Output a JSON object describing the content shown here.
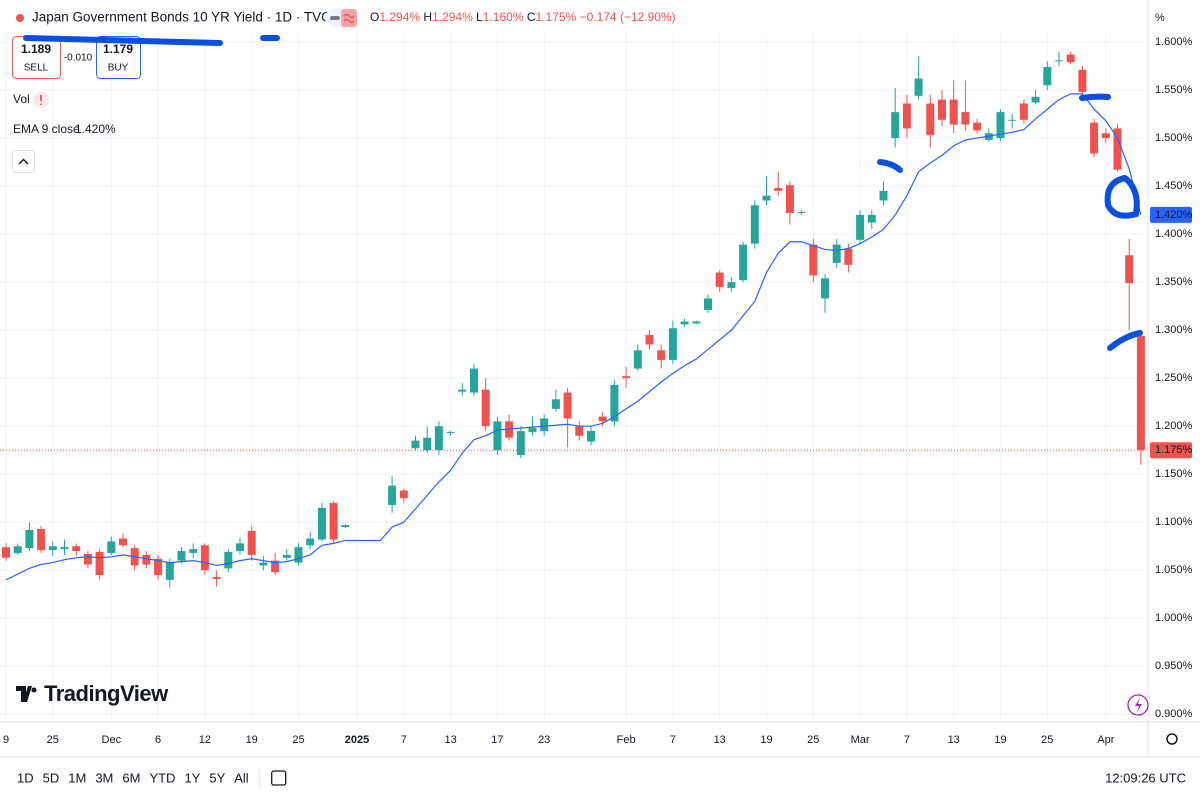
{
  "header": {
    "title": "Japan Government Bonds 10 YR Yield · 1D · TVC",
    "ohlc": [
      {
        "key": "O",
        "value": "1.294%"
      },
      {
        "key": "H",
        "value": "1.294%"
      },
      {
        "key": "L",
        "value": "1.160%"
      },
      {
        "key": "C",
        "value": "1.175%"
      }
    ],
    "change": "−0.174 (−12.90%)",
    "sell": {
      "price": "1.189",
      "label": "SELL"
    },
    "spread": "-0.010",
    "buy": {
      "price": "1.179",
      "label": "BUY"
    },
    "vol": "Vol",
    "axis_unit": "%"
  },
  "chart_data": {
    "type": "candlestick",
    "up_color": "#26a69a",
    "down_color": "#ef5350",
    "grid": true,
    "categories": [
      "9",
      null,
      null,
      null,
      "25",
      null,
      null,
      null,
      null,
      "Dec",
      null,
      null,
      null,
      "6",
      null,
      null,
      null,
      "12",
      null,
      null,
      null,
      "19",
      null,
      null,
      null,
      "25",
      null,
      null,
      null,
      null,
      "2025",
      null,
      null,
      null,
      "7",
      null,
      null,
      null,
      "13",
      null,
      null,
      null,
      "17",
      null,
      null,
      null,
      "23",
      null,
      null,
      null,
      null,
      null,
      null,
      "Feb",
      null,
      null,
      null,
      "7",
      null,
      null,
      null,
      "13",
      null,
      null,
      null,
      "19",
      null,
      null,
      null,
      "25",
      null,
      null,
      null,
      "Mar",
      null,
      null,
      null,
      "7",
      null,
      null,
      null,
      "13",
      null,
      null,
      null,
      "19",
      null,
      null,
      null,
      "25",
      null,
      null,
      null,
      null,
      "Apr",
      null,
      null,
      null
    ],
    "open": [
      1.074,
      1.068,
      1.073,
      1.093,
      1.071,
      1.072,
      1.075,
      1.067,
      1.069,
      1.068,
      1.083,
      1.073,
      1.066,
      1.062,
      1.04,
      1.06,
      1.068,
      1.076,
      1.043,
      1.052,
      1.07,
      1.091,
      1.055,
      1.06,
      1.063,
      1.058,
      1.076,
      1.082,
      1.12,
      1.095,
      null,
      null,
      null,
      1.118,
      1.133,
      1.177,
      1.175,
      1.175,
      1.193,
      1.236,
      1.235,
      1.238,
      1.175,
      1.205,
      1.17,
      1.194,
      1.195,
      1.218,
      1.235,
      1.2,
      1.184,
      1.21,
      1.205,
      1.252,
      1.26,
      1.295,
      1.279,
      1.269,
      1.306,
      1.307,
      1.321,
      1.36,
      1.344,
      1.352,
      1.39,
      1.435,
      1.448,
      1.451,
      1.422,
      1.389,
      1.333,
      1.37,
      1.385,
      1.394,
      1.412,
      1.435,
      1.5,
      1.536,
      1.544,
      1.536,
      1.54,
      1.54,
      1.527,
      1.516,
      1.498,
      1.5,
      1.518,
      1.536,
      1.537,
      1.555,
      1.58,
      1.587,
      1.571,
      1.516,
      1.505,
      1.51,
      1.378,
      1.294
    ],
    "high": [
      1.078,
      1.078,
      1.1,
      1.096,
      1.08,
      1.082,
      1.078,
      1.07,
      1.072,
      1.085,
      1.088,
      1.076,
      1.07,
      1.066,
      1.062,
      1.074,
      1.078,
      1.078,
      1.05,
      1.072,
      1.084,
      1.096,
      1.065,
      1.068,
      1.072,
      1.078,
      1.09,
      1.12,
      1.122,
      1.098,
      null,
      null,
      null,
      1.148,
      1.135,
      1.19,
      1.2,
      1.205,
      1.195,
      1.245,
      1.265,
      1.25,
      1.21,
      1.212,
      1.2,
      1.21,
      1.212,
      1.238,
      1.24,
      1.205,
      1.2,
      1.215,
      1.248,
      1.262,
      1.285,
      1.3,
      1.285,
      1.31,
      1.312,
      1.31,
      1.337,
      1.362,
      1.355,
      1.392,
      1.435,
      1.46,
      1.465,
      1.455,
      1.425,
      1.395,
      1.358,
      1.395,
      1.39,
      1.425,
      1.425,
      1.455,
      1.552,
      1.545,
      1.585,
      1.545,
      1.55,
      1.56,
      1.56,
      1.52,
      1.51,
      1.53,
      1.525,
      1.54,
      1.55,
      1.58,
      1.59,
      1.59,
      1.575,
      1.52,
      1.51,
      1.515,
      1.395,
      1.294
    ],
    "low": [
      1.06,
      1.066,
      1.07,
      1.068,
      1.065,
      1.066,
      1.065,
      1.052,
      1.04,
      1.066,
      1.074,
      1.05,
      1.052,
      1.04,
      1.032,
      1.057,
      1.063,
      1.045,
      1.033,
      1.048,
      1.066,
      1.06,
      1.05,
      1.045,
      1.06,
      1.055,
      1.072,
      1.08,
      1.078,
      1.094,
      null,
      null,
      null,
      1.11,
      1.12,
      1.175,
      1.172,
      1.17,
      1.19,
      1.232,
      1.232,
      1.195,
      1.17,
      1.185,
      1.167,
      1.19,
      1.19,
      1.215,
      1.178,
      1.185,
      1.18,
      1.2,
      1.2,
      1.24,
      1.258,
      1.28,
      1.26,
      1.265,
      1.303,
      1.306,
      1.318,
      1.34,
      1.34,
      1.35,
      1.385,
      1.43,
      1.44,
      1.41,
      1.42,
      1.35,
      1.318,
      1.365,
      1.36,
      1.39,
      1.405,
      1.43,
      1.49,
      1.5,
      1.54,
      1.49,
      1.512,
      1.505,
      1.508,
      1.505,
      1.496,
      1.497,
      1.51,
      1.515,
      1.535,
      1.55,
      1.575,
      1.577,
      1.54,
      1.48,
      1.495,
      1.465,
      1.3,
      1.16
    ],
    "close": [
      1.063,
      1.075,
      1.092,
      1.071,
      1.075,
      1.074,
      1.07,
      1.056,
      1.045,
      1.08,
      1.076,
      1.055,
      1.056,
      1.045,
      1.058,
      1.07,
      1.072,
      1.05,
      1.041,
      1.069,
      1.078,
      1.066,
      1.058,
      1.048,
      1.066,
      1.074,
      1.083,
      1.115,
      1.082,
      1.097,
      null,
      null,
      null,
      1.138,
      1.125,
      1.185,
      1.188,
      1.2,
      1.194,
      1.238,
      1.26,
      1.2,
      1.205,
      1.188,
      1.195,
      1.198,
      1.208,
      1.228,
      1.208,
      1.19,
      1.195,
      1.205,
      1.243,
      1.25,
      1.279,
      1.285,
      1.269,
      1.302,
      1.309,
      1.309,
      1.333,
      1.345,
      1.35,
      1.389,
      1.43,
      1.44,
      1.445,
      1.422,
      1.423,
      1.357,
      1.354,
      1.389,
      1.368,
      1.42,
      1.42,
      1.445,
      1.527,
      1.51,
      1.562,
      1.503,
      1.519,
      1.514,
      1.514,
      1.508,
      1.505,
      1.527,
      1.519,
      1.519,
      1.543,
      1.574,
      1.581,
      1.579,
      1.548,
      1.484,
      1.5,
      1.467,
      1.349,
      1.175
    ],
    "last_price_label": "1.175%",
    "ema": {
      "name": "EMA 9 close",
      "color": "#2962ff",
      "value_label": "1.420%",
      "values": [
        1.04,
        1.046,
        1.052,
        1.056,
        1.058,
        1.061,
        1.063,
        1.064,
        1.063,
        1.064,
        1.066,
        1.064,
        1.062,
        1.06,
        1.058,
        1.059,
        1.06,
        1.058,
        1.055,
        1.057,
        1.06,
        1.062,
        1.06,
        1.058,
        1.059,
        1.062,
        1.066,
        1.076,
        1.078,
        1.081,
        1.081,
        1.081,
        1.081,
        1.095,
        1.1,
        1.114,
        1.128,
        1.142,
        1.154,
        1.172,
        1.186,
        1.19,
        1.196,
        1.197,
        1.198,
        1.199,
        1.2,
        1.201,
        1.202,
        1.2,
        1.2,
        1.203,
        1.21,
        1.218,
        1.226,
        1.236,
        1.246,
        1.255,
        1.263,
        1.27,
        1.28,
        1.29,
        1.3,
        1.315,
        1.33,
        1.36,
        1.38,
        1.392,
        1.392,
        1.388,
        1.384,
        1.383,
        1.385,
        1.39,
        1.397,
        1.405,
        1.42,
        1.44,
        1.465,
        1.474,
        1.482,
        1.492,
        1.498,
        1.5,
        1.502,
        1.504,
        1.506,
        1.509,
        1.52,
        1.53,
        1.54,
        1.546,
        1.546,
        1.53,
        1.518,
        1.5,
        1.468,
        1.42
      ]
    },
    "ylim": [
      0.892,
      1.6125
    ],
    "yticks": [
      {
        "value": 0.9,
        "label": "0.900%"
      },
      {
        "value": 0.95,
        "label": "0.950%"
      },
      {
        "value": 1.0,
        "label": "1.000%"
      },
      {
        "value": 1.05,
        "label": "1.050%"
      },
      {
        "value": 1.1,
        "label": "1.100%"
      },
      {
        "value": 1.15,
        "label": "1.150%"
      },
      {
        "value": 1.2,
        "label": "1.200%"
      },
      {
        "value": 1.25,
        "label": "1.250%"
      },
      {
        "value": 1.3,
        "label": "1.300%"
      },
      {
        "value": 1.35,
        "label": "1.350%"
      },
      {
        "value": 1.4,
        "label": "1.400%"
      },
      {
        "value": 1.45,
        "label": "1.450%"
      },
      {
        "value": 1.5,
        "label": "1.500%"
      },
      {
        "value": 1.55,
        "label": "1.550%"
      },
      {
        "value": 1.6,
        "label": "1.600%"
      }
    ]
  },
  "watermark": "TradingView",
  "toolbar": {
    "ranges": [
      "1D",
      "5D",
      "1M",
      "3M",
      "6M",
      "YTD",
      "1Y",
      "5Y",
      "All"
    ],
    "clock": "12:09:26 UTC"
  }
}
